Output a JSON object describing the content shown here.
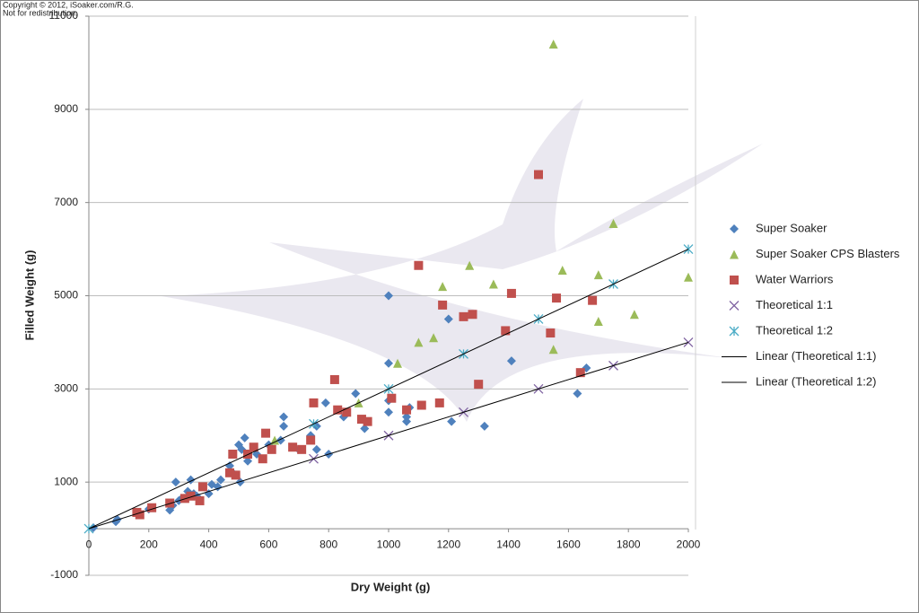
{
  "copyright": [
    "Copyright © 2012, iSoaker.com/R.G.",
    "Not for redistribution."
  ],
  "chart_data": {
    "type": "scatter",
    "x_label": "Dry Weight (g)",
    "y_label": "Filled Weight (g)",
    "xlim": [
      0,
      2000
    ],
    "xticks": [
      0,
      200,
      400,
      600,
      800,
      1000,
      1200,
      1400,
      1600,
      1800,
      2000
    ],
    "ylim": [
      -1000,
      11000
    ],
    "yticks": [
      -1000,
      1000,
      3000,
      5000,
      7000,
      9000,
      11000
    ],
    "grid": true,
    "legend": "right",
    "series": [
      {
        "name": "Super Soaker",
        "color": "#4f81bd",
        "marker": "diamond",
        "x": [
          15,
          90,
          95,
          200,
          270,
          280,
          290,
          300,
          310,
          330,
          340,
          350,
          360,
          400,
          410,
          430,
          440,
          470,
          480,
          500,
          505,
          510,
          520,
          530,
          560,
          600,
          640,
          650,
          650,
          700,
          740,
          760,
          760,
          790,
          800,
          850,
          890,
          920,
          1000,
          1000,
          1000,
          1000,
          1060,
          1060,
          1070,
          1200,
          1210,
          1320,
          1410,
          1630,
          1660
        ],
        "values": [
          20,
          150,
          200,
          420,
          400,
          500,
          1000,
          600,
          650,
          800,
          1050,
          750,
          700,
          750,
          950,
          900,
          1050,
          1350,
          1200,
          1800,
          1000,
          1700,
          1950,
          1450,
          1600,
          1800,
          1900,
          2400,
          2200,
          1700,
          2000,
          2200,
          1700,
          2700,
          1600,
          2400,
          2900,
          2150,
          5000,
          3550,
          2500,
          2750,
          2400,
          2300,
          2600,
          4500,
          2300,
          2200,
          3600,
          2900,
          3450
        ]
      },
      {
        "name": "Super Soaker CPS Blasters",
        "color": "#9bbb59",
        "marker": "triangle",
        "x": [
          1550,
          1750,
          1270,
          1580,
          1700,
          2000,
          1180,
          1350,
          1820,
          1700,
          1100,
          1150,
          1550,
          1030,
          900,
          620
        ],
        "values": [
          10400,
          6550,
          5650,
          5550,
          5450,
          5400,
          5200,
          5250,
          4600,
          4450,
          4000,
          4100,
          3850,
          3550,
          2700,
          1900
        ]
      },
      {
        "name": "Water Warriors",
        "color": "#c0504d",
        "marker": "square",
        "x": [
          1500,
          1100,
          1410,
          1560,
          1680,
          1180,
          1280,
          1250,
          1390,
          1540,
          1640,
          1300,
          1170,
          1110,
          1010,
          1060,
          820,
          750,
          830,
          860,
          910,
          930,
          740,
          710,
          680,
          590,
          610,
          580,
          550,
          530,
          480,
          470,
          490,
          380,
          370,
          340,
          320,
          270,
          210,
          170,
          160
        ],
        "values": [
          7600,
          5650,
          5050,
          4950,
          4900,
          4800,
          4600,
          4550,
          4250,
          4200,
          3350,
          3100,
          2700,
          2650,
          2800,
          2550,
          3200,
          2700,
          2550,
          2500,
          2350,
          2300,
          1900,
          1700,
          1750,
          2050,
          1700,
          1500,
          1750,
          1600,
          1600,
          1200,
          1150,
          900,
          600,
          700,
          650,
          550,
          450,
          300,
          350
        ]
      },
      {
        "name": "Theoretical 1:1",
        "color": "#8064a2",
        "marker": "x",
        "x": [
          750,
          1000,
          1250,
          1500,
          1750,
          2000
        ],
        "values": [
          1500,
          2000,
          2500,
          3000,
          3500,
          4000
        ]
      },
      {
        "name": "Theoretical 1:2",
        "color": "#4bacc6",
        "marker": "asterisk",
        "x": [
          0,
          750,
          1000,
          1250,
          1500,
          1750,
          2000
        ],
        "values": [
          0,
          2250,
          3000,
          3750,
          4500,
          5250,
          6000
        ]
      },
      {
        "name": "Linear (Theoretical 1:1)",
        "color": "#000000",
        "marker": "line",
        "x": [
          0,
          2000
        ],
        "values": [
          0,
          4000
        ]
      },
      {
        "name": "Linear (Theoretical 1:2)",
        "color": "#000000",
        "marker": "line",
        "x": [
          0,
          2000
        ],
        "values": [
          0,
          6000
        ]
      }
    ]
  }
}
